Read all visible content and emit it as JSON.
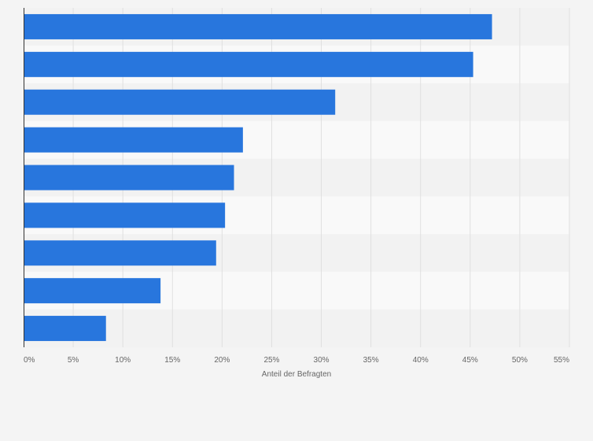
{
  "chart_data": {
    "type": "bar",
    "orientation": "horizontal",
    "title": "",
    "xlabel": "Anteil der Befragten",
    "ylabel": "",
    "categories": [
      "",
      "",
      "",
      "",
      "",
      "",
      "",
      "",
      ""
    ],
    "values": [
      47.2,
      45.3,
      31.4,
      22.1,
      21.2,
      20.3,
      19.4,
      13.8,
      8.3
    ],
    "xlim": [
      0,
      55
    ],
    "x_ticks": [
      0,
      5,
      10,
      15,
      20,
      25,
      30,
      35,
      40,
      45,
      50,
      55
    ],
    "x_tick_labels": [
      "0%",
      "5%",
      "10%",
      "15%",
      "20%",
      "25%",
      "30%",
      "35%",
      "40%",
      "45%",
      "50%",
      "55%"
    ],
    "grid": true,
    "legend": "none",
    "colors": {
      "bar": "#2876dd",
      "band_light": "#f9f9f9",
      "band_dark": "#f2f2f2",
      "grid": "#e0e0e0",
      "axis": "#333333",
      "page_bg": "#f4f4f4",
      "text": "#666666"
    }
  }
}
